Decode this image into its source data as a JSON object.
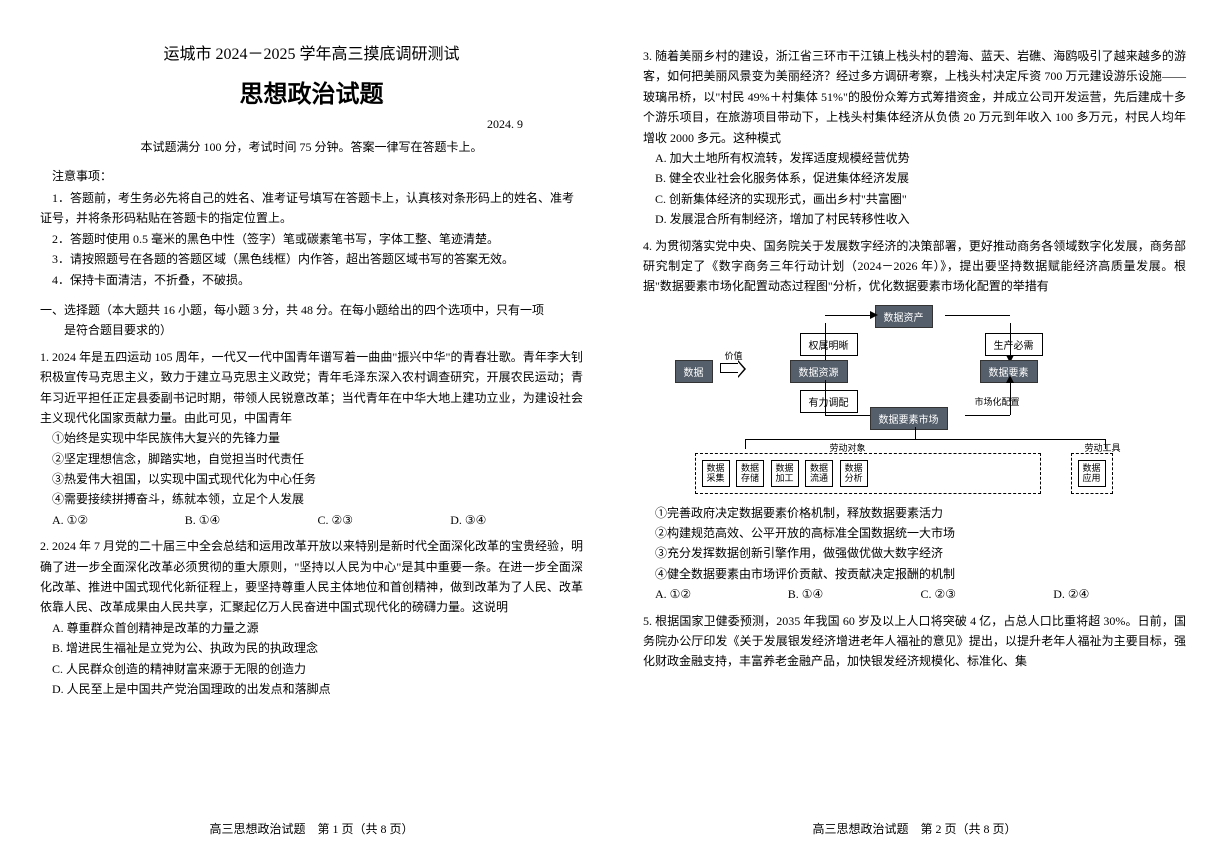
{
  "header": {
    "title": "运城市 2024－2025 学年高三摸底调研测试",
    "subject": "思想政治试题",
    "date": "2024. 9",
    "instruction": "本试题满分 100 分，考试时间 75 分钟。答案一律写在答题卡上。"
  },
  "notices": {
    "title": "注意事项：",
    "items": [
      "1．答题前，考生务必先将自己的姓名、准考证号填写在答题卡上，认真核对条形码上的姓名、准考证号，并将条形码粘贴在答题卡的指定位置上。",
      "2．答题时使用 0.5 毫米的黑色中性（签字）笔或碳素笔书写，字体工整、笔迹清楚。",
      "3．请按照题号在各题的答题区域（黑色线框）内作答，超出答题区域书写的答案无效。",
      "4．保持卡面清洁，不折叠，不破损。"
    ]
  },
  "section": {
    "header": "一、选择题（本大题共 16 小题，每小题 3 分，共 48 分。在每小题给出的四个选项中，只有一项",
    "sub": "是符合题目要求的）"
  },
  "q1": {
    "text": "1. 2024 年是五四运动 105 周年，一代又一代中国青年谱写着一曲曲\"振兴中华\"的青春壮歌。青年李大钊积极宣传马克思主义，致力于建立马克思主义政党；青年毛泽东深入农村调查研究，开展农民运动；青年习近平担任正定县委副书记时期，带领人民锐意改革；当代青年在中华大地上建功立业，为建设社会主义现代化国家贡献力量。由此可见，中国青年",
    "opts": [
      "①始终是实现中华民族伟大复兴的先锋力量",
      "②坚定理想信念，脚踏实地，自觉担当时代责任",
      "③热爱伟大祖国，以实现中国式现代化为中心任务",
      "④需要接续拼搏奋斗，练就本领，立足个人发展"
    ],
    "choices": [
      "A. ①②",
      "B. ①④",
      "C. ②③",
      "D. ③④"
    ]
  },
  "q2": {
    "text": "2. 2024 年 7 月党的二十届三中全会总结和运用改革开放以来特别是新时代全面深化改革的宝贵经验，明确了进一步全面深化改革必须贯彻的重大原则，\"坚持以人民为中心\"是其中重要一条。在进一步全面深化改革、推进中国式现代化新征程上，要坚持尊重人民主体地位和首创精神，做到改革为了人民、改革依靠人民、改革成果由人民共享，汇聚起亿万人民奋进中国式现代化的磅礴力量。这说明",
    "opts": [
      "A. 尊重群众首创精神是改革的力量之源",
      "B. 增进民生福祉是立党为公、执政为民的执政理念",
      "C. 人民群众创造的精神财富来源于无限的创造力",
      "D. 人民至上是中国共产党治国理政的出发点和落脚点"
    ]
  },
  "q3": {
    "text": "3. 随着美丽乡村的建设，浙江省三环市干江镇上栈头村的碧海、蓝天、岩礁、海鸥吸引了越来越多的游客，如何把美丽风景变为美丽经济？经过多方调研考察，上栈头村决定斥资 700 万元建设游乐设施——玻璃吊桥，以\"村民 49%＋村集体 51%\"的股份众筹方式筹措资金，并成立公司开发运营，先后建成十多个游乐项目，在旅游项目带动下，上栈头村集体经济从负债 20 万元到年收入 100 多万元，村民人均年增收 2000 多元。这种模式",
    "opts": [
      "A. 加大土地所有权流转，发挥适度规模经营优势",
      "B. 健全农业社会化服务体系，促进集体经济发展",
      "C. 创新集体经济的实现形式，画出乡村\"共富圈\"",
      "D. 发展混合所有制经济，增加了村民转移性收入"
    ]
  },
  "q4": {
    "text": "4. 为贯彻落实党中央、国务院关于发展数字经济的决策部署，更好推动商务各领域数字化发展，商务部研究制定了《数字商务三年行动计划（2024－2026 年）》，提出要坚持数据赋能经济高质量发展。根据\"数据要素市场化配置动态过程图\"分析，优化数据要素市场化配置的举措有",
    "opts": [
      "①完善政府决定数据要素价格机制，释放数据要素活力",
      "②构建规范高效、公平开放的高标准全国数据统一大市场",
      "③充分发挥数据创新引擎作用，做强做优做大数字经济",
      "④健全数据要素由市场评价贡献、按贡献决定报酬的机制"
    ],
    "choices": [
      "A. ①②",
      "B. ①④",
      "C. ②③",
      "D. ②④"
    ]
  },
  "q5": {
    "text": "5. 根据国家卫健委预测，2035 年我国 60 岁及以上人口将突破 4 亿，占总人口比重将超 30%。日前，国务院办公厅印发《关于发展银发经济增进老年人福祉的意见》提出，以提升老年人福祉为主要目标，强化财政金融支持，丰富养老金融产品，加快银发经济规模化、标准化、集"
  },
  "diagram": {
    "nodes": {
      "data": "数据",
      "data_resource": "数据资源",
      "data_asset": "数据资产",
      "data_element": "数据要素",
      "market": "数据要素市场",
      "collect": "数据\n采集",
      "store": "数据\n存储",
      "process": "数据\n加工",
      "circulate": "数据\n流通",
      "analyze": "数据\n分析",
      "apply": "数据\n应用"
    },
    "labels": {
      "value": "价值",
      "right": "权属明晰",
      "prod": "生产必需",
      "supply": "有力调配",
      "market_conf": "市场化配置",
      "labor_obj": "劳动对象",
      "labor_tool": "劳动工具"
    }
  },
  "footer": {
    "p1": "高三思想政治试题　第 1 页（共 8 页）",
    "p2": "高三思想政治试题　第 2 页（共 8 页）"
  }
}
